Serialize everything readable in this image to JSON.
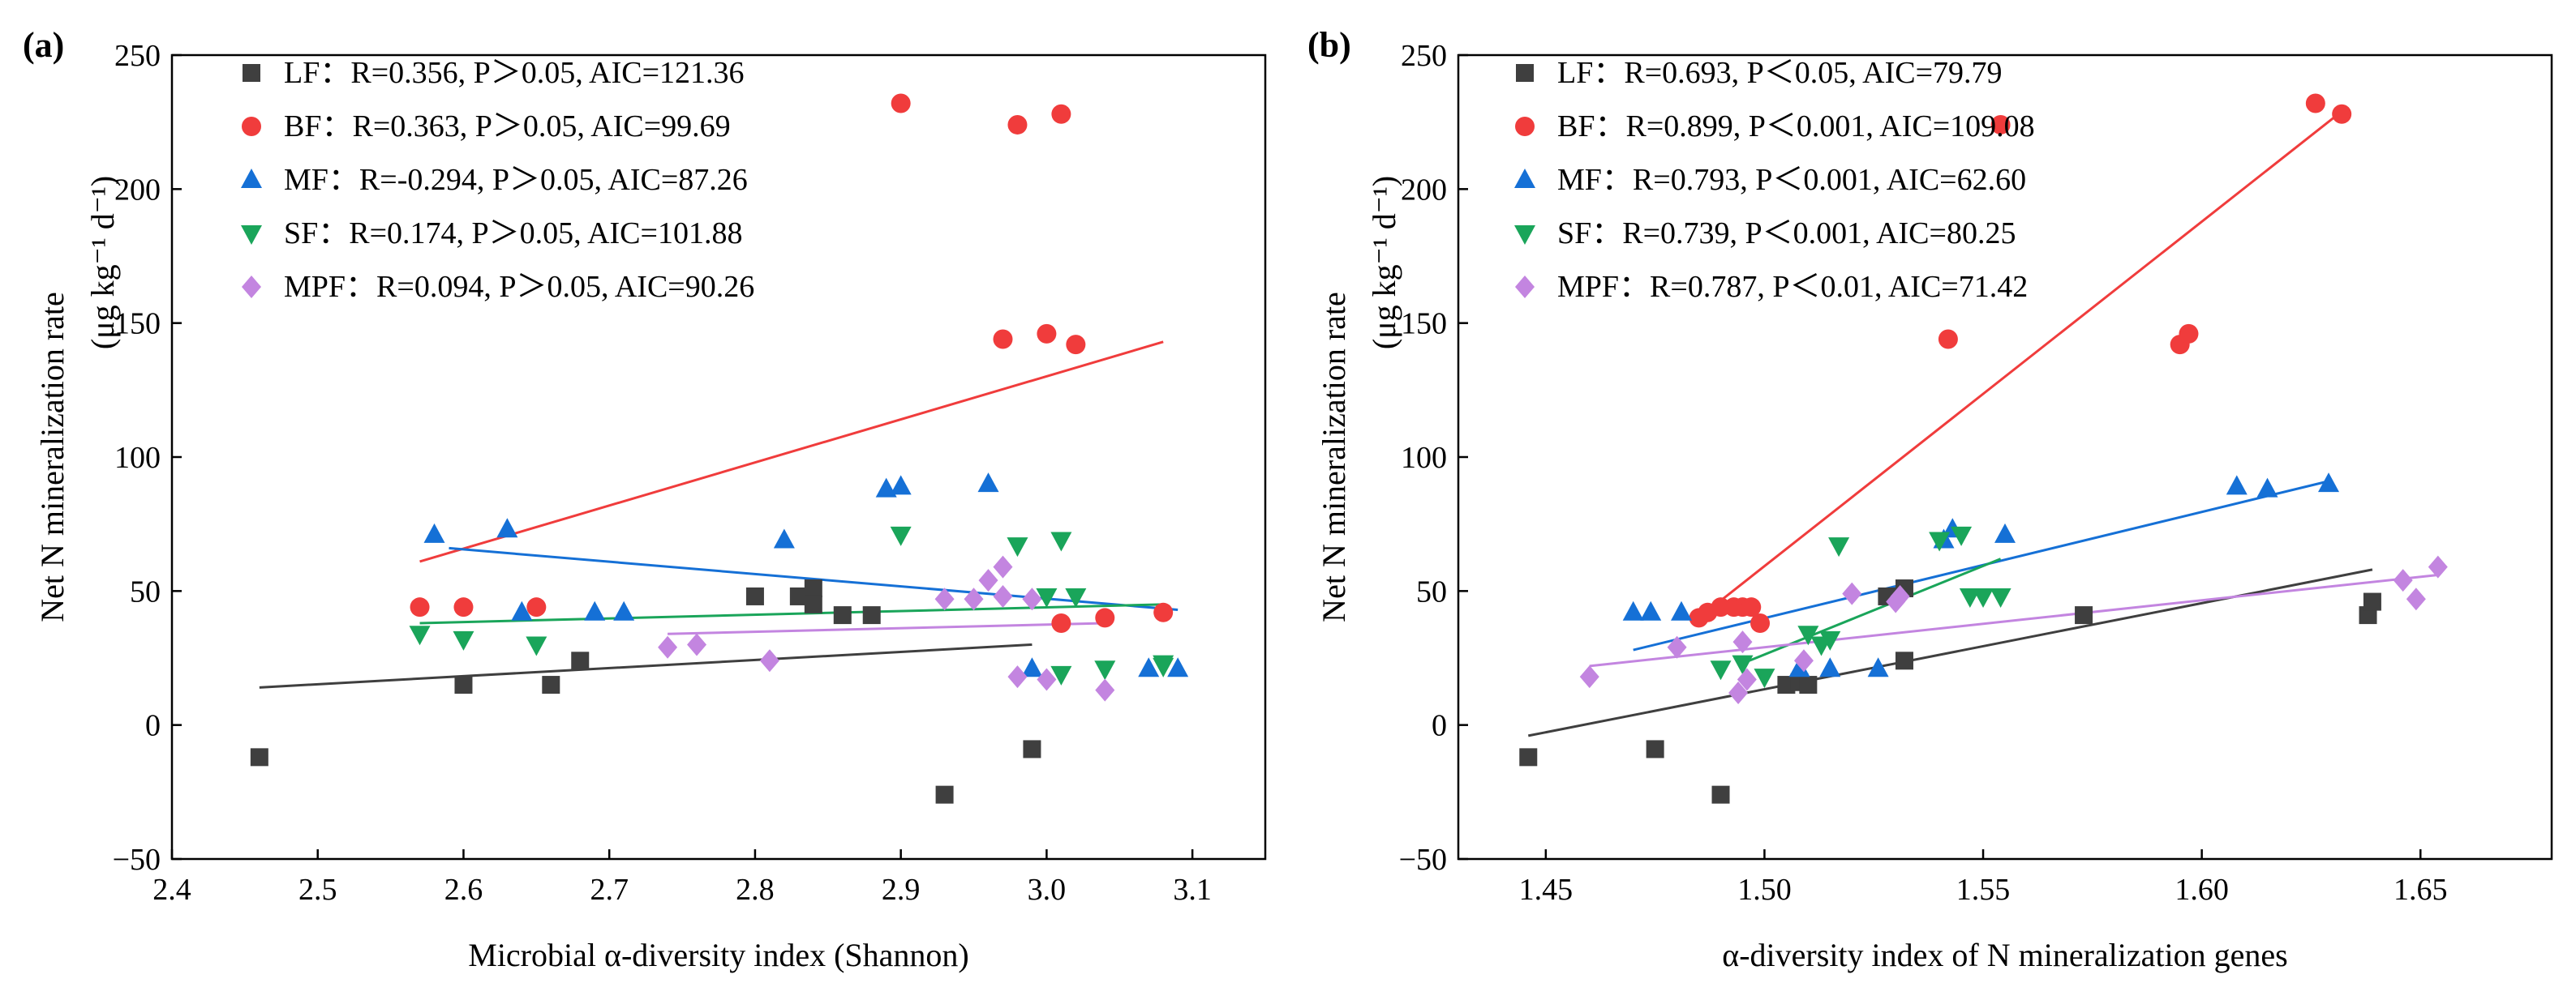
{
  "chart_data": [
    {
      "panel_label": "(a)",
      "type": "scatter",
      "title": "",
      "xlabel": "Microbial α-diversity index (Shannon)",
      "ylabel_line1": "Net N mineralization rate",
      "ylabel_line2": "(μg kg⁻¹ d⁻¹)",
      "xlim": [
        2.4,
        3.15
      ],
      "ylim": [
        -50,
        250
      ],
      "xticks": [
        "2.4",
        "2.5",
        "2.6",
        "2.7",
        "2.8",
        "2.9",
        "3.0",
        "3.1"
      ],
      "xtick_values": [
        2.4,
        2.5,
        2.6,
        2.7,
        2.8,
        2.9,
        3.0,
        3.1
      ],
      "yticks": [
        "−50",
        "0",
        "50",
        "100",
        "150",
        "200",
        "250"
      ],
      "ytick_values": [
        -50,
        0,
        50,
        100,
        150,
        200,
        250
      ],
      "legend_position": "top-left",
      "series": [
        {
          "name": "LF",
          "stats": "LF：R=0.356, P＞0.05, AIC=121.36",
          "marker": "square",
          "color": "#3f3f3f",
          "points": [
            [
              2.46,
              -12
            ],
            [
              2.6,
              15
            ],
            [
              2.66,
              15
            ],
            [
              2.68,
              24
            ],
            [
              2.8,
              48
            ],
            [
              2.83,
              48
            ],
            [
              2.84,
              51
            ],
            [
              2.84,
              45
            ],
            [
              2.86,
              41
            ],
            [
              2.88,
              41
            ],
            [
              2.93,
              -26
            ],
            [
              2.99,
              -9
            ]
          ],
          "fit": [
            [
              2.46,
              14
            ],
            [
              2.99,
              30
            ]
          ]
        },
        {
          "name": "BF",
          "stats": "BF：R=0.363, P＞0.05, AIC=99.69",
          "marker": "circle",
          "color": "#f03c3c",
          "points": [
            [
              2.57,
              44
            ],
            [
              2.6,
              44
            ],
            [
              2.65,
              44
            ],
            [
              2.9,
              232
            ],
            [
              2.97,
              144
            ],
            [
              2.98,
              224
            ],
            [
              3.0,
              146
            ],
            [
              3.01,
              228
            ],
            [
              3.01,
              38
            ],
            [
              3.02,
              142
            ],
            [
              3.04,
              40
            ],
            [
              3.08,
              42
            ]
          ],
          "fit": [
            [
              2.57,
              61
            ],
            [
              3.08,
              143
            ]
          ]
        },
        {
          "name": "MF",
          "stats": "MF：R=-0.294, P＞0.05, AIC=87.26",
          "marker": "triangle",
          "color": "#1570d6",
          "points": [
            [
              2.58,
              71
            ],
            [
              2.63,
              73
            ],
            [
              2.64,
              42
            ],
            [
              2.69,
              42
            ],
            [
              2.71,
              42
            ],
            [
              2.82,
              69
            ],
            [
              2.89,
              88
            ],
            [
              2.9,
              89
            ],
            [
              2.96,
              90
            ],
            [
              2.99,
              21
            ],
            [
              3.07,
              21
            ],
            [
              3.09,
              21
            ]
          ],
          "fit": [
            [
              2.59,
              66
            ],
            [
              3.09,
              43
            ]
          ]
        },
        {
          "name": "SF",
          "stats": "SF：R=0.174, P＞0.05, AIC=101.88",
          "marker": "triangle-down",
          "color": "#1aa55a",
          "points": [
            [
              2.57,
              34
            ],
            [
              2.6,
              32
            ],
            [
              2.65,
              30
            ],
            [
              2.9,
              71
            ],
            [
              2.98,
              67
            ],
            [
              3.0,
              48
            ],
            [
              3.01,
              69
            ],
            [
              3.01,
              19
            ],
            [
              3.02,
              48
            ],
            [
              3.04,
              21
            ],
            [
              3.08,
              22
            ],
            [
              3.08,
              23
            ]
          ],
          "fit": [
            [
              2.57,
              38
            ],
            [
              3.08,
              45
            ]
          ]
        },
        {
          "name": "MPF",
          "stats": "MPF：R=0.094, P＞0.05, AIC=90.26",
          "marker": "diamond",
          "color": "#c385e0",
          "points": [
            [
              2.74,
              29
            ],
            [
              2.76,
              30
            ],
            [
              2.81,
              24
            ],
            [
              2.93,
              47
            ],
            [
              2.95,
              47
            ],
            [
              2.96,
              54
            ],
            [
              2.97,
              59
            ],
            [
              2.97,
              48
            ],
            [
              2.98,
              18
            ],
            [
              2.99,
              47
            ],
            [
              3.0,
              17
            ],
            [
              3.04,
              13
            ]
          ],
          "fit": [
            [
              2.74,
              34
            ],
            [
              3.04,
              38
            ]
          ]
        }
      ]
    },
    {
      "panel_label": "(b)",
      "type": "scatter",
      "title": "",
      "xlabel": "α-diversity index of N mineralization  genes",
      "ylabel_line1": "Net N mineralization rate",
      "ylabel_line2": "(μg kg⁻¹ d⁻¹)",
      "xlim": [
        1.43,
        1.68
      ],
      "ylim": [
        -50,
        250
      ],
      "xticks": [
        "1.45",
        "1.50",
        "1.55",
        "1.60",
        "1.65"
      ],
      "xtick_values": [
        1.45,
        1.5,
        1.55,
        1.6,
        1.65
      ],
      "yticks": [
        "−50",
        "0",
        "50",
        "100",
        "150",
        "200",
        "250"
      ],
      "ytick_values": [
        -50,
        0,
        50,
        100,
        150,
        200,
        250
      ],
      "legend_position": "top-left",
      "series": [
        {
          "name": "LF",
          "stats": "LF：R=0.693, P＜0.05, AIC=79.79",
          "marker": "square",
          "color": "#3f3f3f",
          "points": [
            [
              1.446,
              -12
            ],
            [
              1.475,
              -9
            ],
            [
              1.49,
              -26
            ],
            [
              1.505,
              15
            ],
            [
              1.508,
              16
            ],
            [
              1.51,
              15
            ],
            [
              1.528,
              48
            ],
            [
              1.532,
              51
            ],
            [
              1.532,
              24
            ],
            [
              1.573,
              41
            ],
            [
              1.638,
              41
            ],
            [
              1.639,
              46
            ]
          ],
          "fit": [
            [
              1.446,
              -4
            ],
            [
              1.639,
              58
            ]
          ]
        },
        {
          "name": "BF",
          "stats": "BF：R=0.899, P＜0.001, AIC=109.08",
          "marker": "circle",
          "color": "#f03c3c",
          "points": [
            [
              1.485,
              40
            ],
            [
              1.487,
              42
            ],
            [
              1.49,
              44
            ],
            [
              1.493,
              44
            ],
            [
              1.495,
              44
            ],
            [
              1.497,
              44
            ],
            [
              1.499,
              38
            ],
            [
              1.542,
              144
            ],
            [
              1.554,
              224
            ],
            [
              1.595,
              142
            ],
            [
              1.597,
              146
            ],
            [
              1.626,
              232
            ],
            [
              1.632,
              228
            ]
          ],
          "fit": [
            [
              1.485,
              40
            ],
            [
              1.632,
              229
            ]
          ]
        },
        {
          "name": "MF",
          "stats": "MF：R=0.793, P＜0.001, AIC=62.60",
          "marker": "triangle",
          "color": "#1570d6",
          "points": [
            [
              1.47,
              42
            ],
            [
              1.474,
              42
            ],
            [
              1.481,
              42
            ],
            [
              1.508,
              21
            ],
            [
              1.515,
              21
            ],
            [
              1.526,
              21
            ],
            [
              1.541,
              69
            ],
            [
              1.543,
              73
            ],
            [
              1.555,
              71
            ],
            [
              1.608,
              89
            ],
            [
              1.615,
              88
            ],
            [
              1.629,
              90
            ]
          ],
          "fit": [
            [
              1.47,
              28
            ],
            [
              1.629,
              91
            ]
          ]
        },
        {
          "name": "SF",
          "stats": "SF：R=0.739, P＜0.001, AIC=80.25",
          "marker": "triangle-down",
          "color": "#1aa55a",
          "points": [
            [
              1.49,
              21
            ],
            [
              1.495,
              23
            ],
            [
              1.5,
              18
            ],
            [
              1.51,
              34
            ],
            [
              1.513,
              30
            ],
            [
              1.515,
              32
            ],
            [
              1.517,
              67
            ],
            [
              1.54,
              69
            ],
            [
              1.545,
              71
            ],
            [
              1.547,
              48
            ],
            [
              1.55,
              48
            ],
            [
              1.554,
              48
            ]
          ],
          "fit": [
            [
              1.495,
              23
            ],
            [
              1.554,
              62
            ]
          ]
        },
        {
          "name": "MPF",
          "stats": "MPF：R=0.787, P＜0.01, AIC=71.42",
          "marker": "diamond",
          "color": "#c385e0",
          "points": [
            [
              1.46,
              18
            ],
            [
              1.48,
              29
            ],
            [
              1.494,
              12
            ],
            [
              1.495,
              31
            ],
            [
              1.496,
              17
            ],
            [
              1.509,
              24
            ],
            [
              1.52,
              49
            ],
            [
              1.53,
              46
            ],
            [
              1.531,
              48
            ],
            [
              1.646,
              54
            ],
            [
              1.649,
              47
            ],
            [
              1.654,
              59
            ]
          ],
          "fit": [
            [
              1.46,
              22
            ],
            [
              1.654,
              56
            ]
          ]
        }
      ]
    }
  ]
}
